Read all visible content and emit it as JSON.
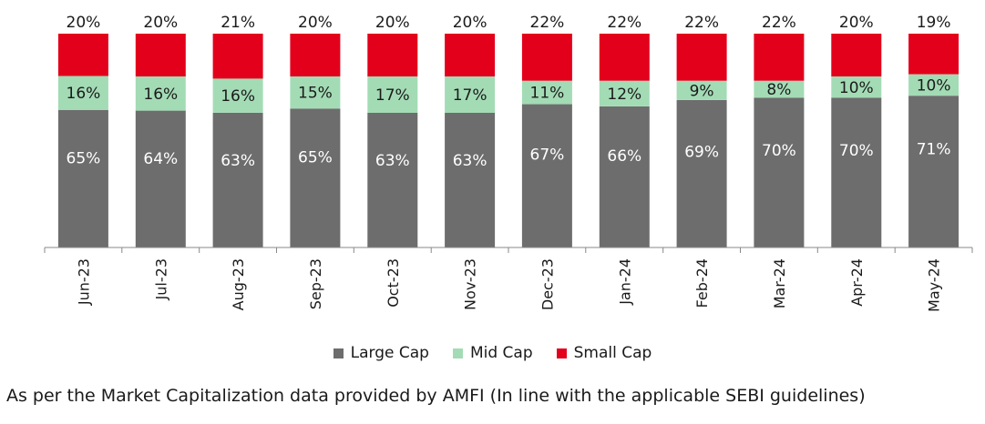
{
  "chart_data": {
    "type": "bar",
    "stacked": true,
    "categories": [
      "Jun-23",
      "Jul-23",
      "Aug-23",
      "Sep-23",
      "Oct-23",
      "Nov-23",
      "Dec-23",
      "Jan-24",
      "Feb-24",
      "Mar-24",
      "Apr-24",
      "May-24"
    ],
    "series": [
      {
        "name": "Large Cap",
        "color": "#6d6d6d",
        "values": [
          65,
          64,
          63,
          65,
          63,
          63,
          67,
          66,
          69,
          70,
          70,
          71
        ],
        "labels": [
          "65%",
          "64%",
          "63%",
          "65%",
          "63%",
          "63%",
          "67%",
          "66%",
          "69%",
          "70%",
          "70%",
          "71%"
        ]
      },
      {
        "name": "Mid Cap",
        "color": "#a3dbb5",
        "values": [
          16,
          16,
          16,
          15,
          17,
          17,
          11,
          12,
          9,
          8,
          10,
          10
        ],
        "labels": [
          "16%",
          "16%",
          "16%",
          "15%",
          "17%",
          "17%",
          "11%",
          "12%",
          "9%",
          "8%",
          "10%",
          "10%"
        ]
      },
      {
        "name": "Small Cap",
        "color": "#e3001b",
        "values": [
          20,
          20,
          21,
          20,
          20,
          20,
          22,
          22,
          22,
          22,
          20,
          19
        ],
        "labels": [
          "20%",
          "20%",
          "21%",
          "20%",
          "20%",
          "20%",
          "22%",
          "22%",
          "22%",
          "22%",
          "20%",
          "19%"
        ]
      }
    ],
    "legend_position": "bottom-center",
    "grid": false
  },
  "footnote": "As per the Market Capitalization data provided by AMFI (In line with the applicable SEBI guidelines)"
}
